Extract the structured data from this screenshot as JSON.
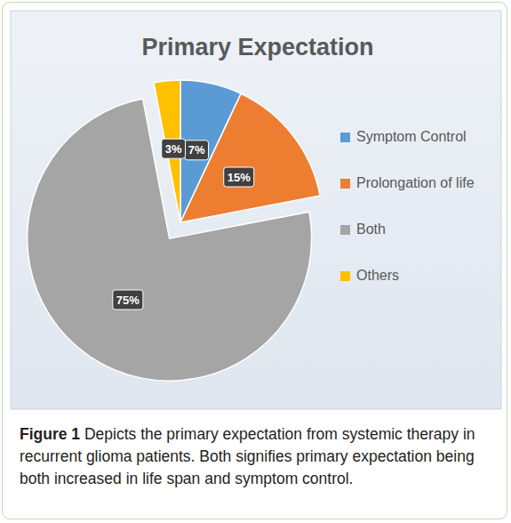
{
  "chart_data": {
    "type": "pie",
    "title": "Primary Expectation",
    "categories": [
      "Symptom Control",
      "Prolongation of life",
      "Both",
      "Others"
    ],
    "values": [
      7,
      15,
      75,
      3
    ],
    "value_labels": [
      "7%",
      "15%",
      "75%",
      "3%"
    ],
    "colors": [
      "#5b9bd5",
      "#ed7d31",
      "#a5a5a5",
      "#ffc000"
    ],
    "data_labels": true,
    "legend": "right",
    "caption_label": "Figure 1",
    "caption": "Depicts the primary expectation from systemic therapy in recurrent glioma patients. Both signifies primary expectation being both increased in life span and symptom control."
  }
}
